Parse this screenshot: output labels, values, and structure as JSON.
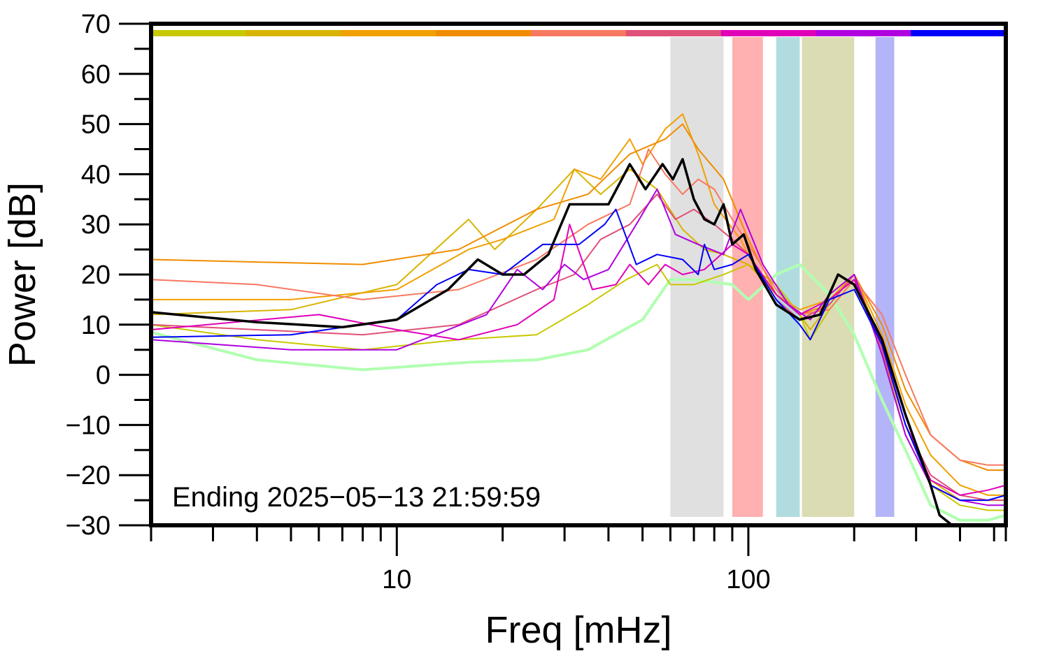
{
  "chart_data": {
    "type": "line",
    "xlabel": "Freq [mHz]",
    "ylabel": "Power [dB]",
    "xscale": "log",
    "xlim": [
      2,
      540
    ],
    "ylim": [
      -30,
      70
    ],
    "x_ticks": [
      10,
      100
    ],
    "x_tick_labels": [
      "10",
      "100"
    ],
    "y_ticks": [
      -30,
      -20,
      -10,
      0,
      10,
      20,
      30,
      40,
      50,
      60,
      70
    ],
    "y_tick_labels": [
      "−30",
      "−20",
      "−10",
      "0",
      "10",
      "20",
      "30",
      "40",
      "50",
      "60",
      "70"
    ],
    "annotation": "Ending 2025−05−13 21:59:59",
    "grid": false,
    "legend": "none",
    "color_bar": [
      "#c8c800",
      "#d8b400",
      "#f0a000",
      "#f08c00",
      "#f87860",
      "#e05078",
      "#e000b8",
      "#b000e0",
      "#0000f8"
    ],
    "bands": [
      {
        "x0": 60,
        "x1": 85,
        "color": "#e0e0e0"
      },
      {
        "x0": 90,
        "x1": 110,
        "color": "#ffb0b0"
      },
      {
        "x0": 120,
        "x1": 140,
        "color": "#b0dce0"
      },
      {
        "x0": 142,
        "x1": 200,
        "color": "#dcdcb4"
      },
      {
        "x0": 230,
        "x1": 260,
        "color": "#b4b4f8"
      }
    ],
    "series": [
      {
        "color": "#b0ffb0",
        "width": 4,
        "points": [
          [
            2,
            8.5
          ],
          [
            4,
            3
          ],
          [
            8,
            1
          ],
          [
            16,
            2.5
          ],
          [
            25,
            3
          ],
          [
            35,
            5
          ],
          [
            50,
            11
          ],
          [
            60,
            19
          ],
          [
            70,
            19
          ],
          [
            90,
            18
          ],
          [
            100,
            15
          ],
          [
            120,
            20
          ],
          [
            140,
            22
          ],
          [
            170,
            16
          ],
          [
            200,
            8
          ],
          [
            240,
            -5
          ],
          [
            280,
            -15
          ],
          [
            330,
            -26
          ],
          [
            400,
            -29
          ],
          [
            480,
            -29
          ],
          [
            540,
            -28
          ]
        ]
      },
      {
        "color": "#c8c800",
        "width": 2,
        "points": [
          [
            2,
            10
          ],
          [
            4,
            7
          ],
          [
            8,
            5
          ],
          [
            15,
            7
          ],
          [
            25,
            8
          ],
          [
            35,
            14
          ],
          [
            45,
            19
          ],
          [
            55,
            22
          ],
          [
            60,
            18
          ],
          [
            70,
            18
          ],
          [
            85,
            20
          ],
          [
            100,
            22
          ],
          [
            120,
            18
          ],
          [
            140,
            12
          ],
          [
            150,
            7
          ],
          [
            170,
            13
          ],
          [
            200,
            19
          ],
          [
            240,
            5
          ],
          [
            280,
            -12
          ],
          [
            330,
            -22
          ],
          [
            400,
            -26
          ],
          [
            480,
            -27
          ],
          [
            540,
            -27
          ]
        ]
      },
      {
        "color": "#d8b400",
        "width": 2,
        "points": [
          [
            2,
            12
          ],
          [
            5,
            13
          ],
          [
            10,
            18
          ],
          [
            16,
            31
          ],
          [
            19,
            25
          ],
          [
            25,
            33
          ],
          [
            32,
            41
          ],
          [
            38,
            36
          ],
          [
            46,
            41
          ],
          [
            55,
            37
          ],
          [
            65,
            29
          ],
          [
            75,
            25
          ],
          [
            85,
            24
          ],
          [
            100,
            22
          ],
          [
            120,
            16
          ],
          [
            140,
            12
          ],
          [
            150,
            9
          ],
          [
            170,
            14
          ],
          [
            200,
            20
          ],
          [
            240,
            6
          ],
          [
            280,
            -10
          ],
          [
            330,
            -21
          ],
          [
            400,
            -25
          ],
          [
            480,
            -25
          ],
          [
            540,
            -25
          ]
        ]
      },
      {
        "color": "#f0a000",
        "width": 2,
        "points": [
          [
            2,
            15
          ],
          [
            5,
            15
          ],
          [
            10,
            17
          ],
          [
            16,
            25
          ],
          [
            20,
            27
          ],
          [
            28,
            31
          ],
          [
            32,
            41
          ],
          [
            38,
            39
          ],
          [
            46,
            47
          ],
          [
            50,
            42
          ],
          [
            58,
            49
          ],
          [
            65,
            52
          ],
          [
            72,
            44
          ],
          [
            80,
            34
          ],
          [
            95,
            27
          ],
          [
            105,
            21
          ],
          [
            120,
            16
          ],
          [
            140,
            13
          ],
          [
            170,
            15
          ],
          [
            200,
            20
          ],
          [
            240,
            8
          ],
          [
            280,
            -6
          ],
          [
            330,
            -16
          ],
          [
            400,
            -22
          ],
          [
            480,
            -24
          ],
          [
            540,
            -24
          ]
        ]
      },
      {
        "color": "#f08c00",
        "width": 2,
        "points": [
          [
            2,
            23
          ],
          [
            4,
            22.5
          ],
          [
            8,
            22
          ],
          [
            15,
            25
          ],
          [
            25,
            33
          ],
          [
            35,
            36
          ],
          [
            46,
            44
          ],
          [
            58,
            47
          ],
          [
            65,
            50
          ],
          [
            72,
            45
          ],
          [
            85,
            39
          ],
          [
            100,
            27
          ],
          [
            120,
            16
          ],
          [
            140,
            12
          ],
          [
            170,
            14
          ],
          [
            200,
            20
          ],
          [
            240,
            10
          ],
          [
            280,
            -3
          ],
          [
            330,
            -12
          ],
          [
            400,
            -17
          ],
          [
            480,
            -19
          ],
          [
            540,
            -19
          ]
        ]
      },
      {
        "color": "#f87860",
        "width": 2,
        "points": [
          [
            2,
            19
          ],
          [
            4,
            18
          ],
          [
            8,
            15
          ],
          [
            15,
            17
          ],
          [
            25,
            23
          ],
          [
            35,
            30
          ],
          [
            46,
            34
          ],
          [
            52,
            45
          ],
          [
            58,
            40
          ],
          [
            65,
            36
          ],
          [
            72,
            39
          ],
          [
            80,
            37
          ],
          [
            90,
            31
          ],
          [
            100,
            26
          ],
          [
            120,
            17
          ],
          [
            140,
            12
          ],
          [
            170,
            13
          ],
          [
            200,
            19
          ],
          [
            240,
            12
          ],
          [
            280,
            0
          ],
          [
            330,
            -12
          ],
          [
            400,
            -17
          ],
          [
            480,
            -18
          ],
          [
            540,
            -18
          ]
        ]
      },
      {
        "color": "#e05078",
        "width": 2,
        "points": [
          [
            2,
            10
          ],
          [
            4,
            9
          ],
          [
            8,
            8
          ],
          [
            15,
            10
          ],
          [
            25,
            17
          ],
          [
            32,
            20
          ],
          [
            38,
            27
          ],
          [
            46,
            30
          ],
          [
            55,
            36
          ],
          [
            62,
            31
          ],
          [
            70,
            33
          ],
          [
            80,
            30
          ],
          [
            90,
            27
          ],
          [
            100,
            24
          ],
          [
            120,
            15
          ],
          [
            140,
            11
          ],
          [
            170,
            14
          ],
          [
            200,
            20
          ],
          [
            240,
            5
          ],
          [
            280,
            -10
          ],
          [
            330,
            -20
          ],
          [
            400,
            -24
          ],
          [
            480,
            -25
          ],
          [
            540,
            -25
          ]
        ]
      },
      {
        "color": "#e000b8",
        "width": 2,
        "points": [
          [
            2,
            9
          ],
          [
            6,
            12
          ],
          [
            10,
            9
          ],
          [
            15,
            7
          ],
          [
            22,
            10
          ],
          [
            28,
            15
          ],
          [
            31,
            30
          ],
          [
            36,
            17
          ],
          [
            42,
            18
          ],
          [
            46,
            22
          ],
          [
            52,
            18
          ],
          [
            58,
            22
          ],
          [
            65,
            20
          ],
          [
            75,
            21
          ],
          [
            90,
            26
          ],
          [
            100,
            24
          ],
          [
            120,
            16
          ],
          [
            140,
            12
          ],
          [
            170,
            15
          ],
          [
            200,
            19
          ],
          [
            240,
            6
          ],
          [
            280,
            -10
          ],
          [
            330,
            -21
          ],
          [
            400,
            -24
          ],
          [
            480,
            -23
          ],
          [
            540,
            -22
          ]
        ]
      },
      {
        "color": "#b000e0",
        "width": 2,
        "points": [
          [
            2,
            7
          ],
          [
            5,
            5
          ],
          [
            10,
            5
          ],
          [
            18,
            12
          ],
          [
            22,
            21
          ],
          [
            26,
            17
          ],
          [
            30,
            22
          ],
          [
            34,
            19
          ],
          [
            40,
            21
          ],
          [
            48,
            30
          ],
          [
            55,
            37
          ],
          [
            62,
            28
          ],
          [
            72,
            26
          ],
          [
            85,
            24
          ],
          [
            95,
            33
          ],
          [
            110,
            22
          ],
          [
            130,
            14
          ],
          [
            150,
            11
          ],
          [
            170,
            16
          ],
          [
            200,
            20
          ],
          [
            240,
            4
          ],
          [
            280,
            -12
          ],
          [
            330,
            -22
          ],
          [
            400,
            -25
          ],
          [
            480,
            -26
          ],
          [
            540,
            -26
          ]
        ]
      },
      {
        "color": "#0000f8",
        "width": 2,
        "points": [
          [
            2,
            7.5
          ],
          [
            5,
            8
          ],
          [
            10,
            11
          ],
          [
            13,
            18
          ],
          [
            16,
            21
          ],
          [
            20,
            20
          ],
          [
            26,
            26
          ],
          [
            33,
            26
          ],
          [
            39,
            30
          ],
          [
            42,
            33
          ],
          [
            48,
            22
          ],
          [
            55,
            24
          ],
          [
            65,
            23
          ],
          [
            72,
            20
          ],
          [
            75,
            26
          ],
          [
            80,
            21
          ],
          [
            90,
            22
          ],
          [
            100,
            24
          ],
          [
            120,
            15
          ],
          [
            140,
            10
          ],
          [
            150,
            7
          ],
          [
            170,
            15
          ],
          [
            200,
            17
          ],
          [
            240,
            6
          ],
          [
            280,
            -10
          ],
          [
            330,
            -22
          ],
          [
            400,
            -25
          ],
          [
            480,
            -25
          ],
          [
            540,
            -24
          ]
        ]
      },
      {
        "color": "#000000",
        "width": 3.5,
        "points": [
          [
            2,
            12.5
          ],
          [
            4,
            10.5
          ],
          [
            7,
            9.5
          ],
          [
            10,
            11
          ],
          [
            14,
            17
          ],
          [
            17,
            23
          ],
          [
            20,
            20
          ],
          [
            23,
            20
          ],
          [
            27,
            24
          ],
          [
            31,
            34
          ],
          [
            35,
            34
          ],
          [
            40,
            34
          ],
          [
            46,
            42
          ],
          [
            51,
            37
          ],
          [
            57,
            42
          ],
          [
            61,
            39
          ],
          [
            65,
            43
          ],
          [
            70,
            35
          ],
          [
            75,
            31
          ],
          [
            80,
            30
          ],
          [
            85,
            34
          ],
          [
            90,
            26
          ],
          [
            97,
            28
          ],
          [
            105,
            21
          ],
          [
            120,
            14
          ],
          [
            140,
            11
          ],
          [
            160,
            12
          ],
          [
            180,
            20
          ],
          [
            200,
            18
          ],
          [
            240,
            7
          ],
          [
            280,
            -8
          ],
          [
            330,
            -22
          ],
          [
            350,
            -28
          ],
          [
            380,
            -32
          ]
        ]
      }
    ]
  }
}
